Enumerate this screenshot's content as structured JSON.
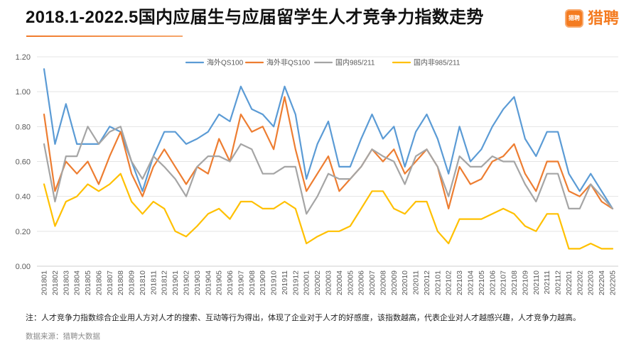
{
  "logo": {
    "icon_text": "猎聘",
    "text": "猎聘"
  },
  "colors": {
    "brand": "#F47B20"
  },
  "footnote": "注：人才竞争力指数综合企业用人方对人才的搜索、互动等行为得出，体现了企业对于人才的好感度，该指数越高，代表企业对人才越感兴趣，人才竞争力越高。",
  "source": "数据来源：猎聘大数据",
  "chart_data": {
    "type": "line",
    "title": "2018.1-2022.5国内应届生与应届留学生人才竞争力指数走势",
    "x": [
      "201801",
      "201802",
      "201803",
      "201804",
      "201805",
      "201806",
      "201807",
      "201808",
      "201809",
      "201810",
      "201811",
      "201812",
      "201901",
      "201902",
      "201903",
      "201904",
      "201905",
      "201906",
      "201907",
      "201908",
      "201909",
      "201910",
      "201911",
      "201912",
      "202001",
      "202002",
      "202003",
      "202004",
      "202005",
      "202006",
      "202007",
      "202008",
      "202009",
      "202010",
      "202011",
      "202012",
      "202101",
      "202102",
      "202103",
      "202104",
      "202105",
      "202106",
      "202107",
      "202108",
      "202109",
      "202110",
      "202111",
      "202112",
      "202201",
      "202202",
      "202203",
      "202204",
      "202205"
    ],
    "ylim": [
      0,
      1.2
    ],
    "y_ticks": [
      0,
      0.2,
      0.4,
      0.6,
      0.8,
      1.0,
      1.2
    ],
    "y_tick_labels": [
      "0.00",
      "0.20",
      "0.40",
      "0.60",
      "0.80",
      "1.00",
      "1.20"
    ],
    "grid": "horizontal",
    "legend": "top-center",
    "series": [
      {
        "name": "海外QS100",
        "color": "#5B9BD5",
        "values": [
          1.13,
          0.7,
          0.93,
          0.7,
          0.7,
          0.7,
          0.8,
          0.77,
          0.6,
          0.43,
          0.63,
          0.77,
          0.77,
          0.7,
          0.73,
          0.77,
          0.87,
          0.83,
          1.03,
          0.9,
          0.87,
          0.8,
          1.03,
          0.87,
          0.5,
          0.7,
          0.83,
          0.57,
          0.57,
          0.73,
          0.87,
          0.73,
          0.8,
          0.57,
          0.77,
          0.87,
          0.73,
          0.53,
          0.8,
          0.6,
          0.67,
          0.8,
          0.9,
          0.97,
          0.73,
          0.63,
          0.77,
          0.77,
          0.53,
          0.43,
          0.53,
          0.43,
          0.33
        ]
      },
      {
        "name": "海外非QS100",
        "color": "#ED7D31",
        "values": [
          0.87,
          0.43,
          0.6,
          0.53,
          0.6,
          0.47,
          0.63,
          0.77,
          0.53,
          0.4,
          0.57,
          0.67,
          0.57,
          0.47,
          0.57,
          0.53,
          0.73,
          0.6,
          0.87,
          0.77,
          0.8,
          0.67,
          0.97,
          0.67,
          0.43,
          0.53,
          0.63,
          0.43,
          0.5,
          0.57,
          0.67,
          0.6,
          0.67,
          0.53,
          0.6,
          0.67,
          0.57,
          0.33,
          0.57,
          0.47,
          0.5,
          0.6,
          0.63,
          0.7,
          0.53,
          0.43,
          0.6,
          0.6,
          0.43,
          0.4,
          0.47,
          0.37,
          0.33
        ]
      },
      {
        "name": "国内985/211",
        "color": "#A5A5A5",
        "values": [
          0.7,
          0.37,
          0.63,
          0.63,
          0.8,
          0.7,
          0.77,
          0.8,
          0.6,
          0.5,
          0.63,
          0.57,
          0.5,
          0.4,
          0.57,
          0.63,
          0.63,
          0.6,
          0.7,
          0.67,
          0.53,
          0.53,
          0.57,
          0.57,
          0.3,
          0.4,
          0.53,
          0.5,
          0.5,
          0.57,
          0.67,
          0.63,
          0.6,
          0.47,
          0.63,
          0.67,
          0.57,
          0.4,
          0.63,
          0.57,
          0.57,
          0.63,
          0.6,
          0.6,
          0.47,
          0.37,
          0.53,
          0.53,
          0.33,
          0.33,
          0.47,
          0.4,
          0.33
        ]
      },
      {
        "name": "国内非985/211",
        "color": "#FFC000",
        "values": [
          0.47,
          0.23,
          0.37,
          0.4,
          0.47,
          0.43,
          0.47,
          0.53,
          0.37,
          0.3,
          0.37,
          0.33,
          0.2,
          0.17,
          0.23,
          0.3,
          0.33,
          0.27,
          0.37,
          0.37,
          0.33,
          0.33,
          0.37,
          0.33,
          0.13,
          0.17,
          0.2,
          0.2,
          0.23,
          0.33,
          0.43,
          0.43,
          0.33,
          0.3,
          0.37,
          0.37,
          0.2,
          0.13,
          0.27,
          0.27,
          0.27,
          0.3,
          0.33,
          0.3,
          0.23,
          0.2,
          0.3,
          0.3,
          0.1,
          0.1,
          0.13,
          0.1,
          0.1
        ]
      }
    ]
  }
}
